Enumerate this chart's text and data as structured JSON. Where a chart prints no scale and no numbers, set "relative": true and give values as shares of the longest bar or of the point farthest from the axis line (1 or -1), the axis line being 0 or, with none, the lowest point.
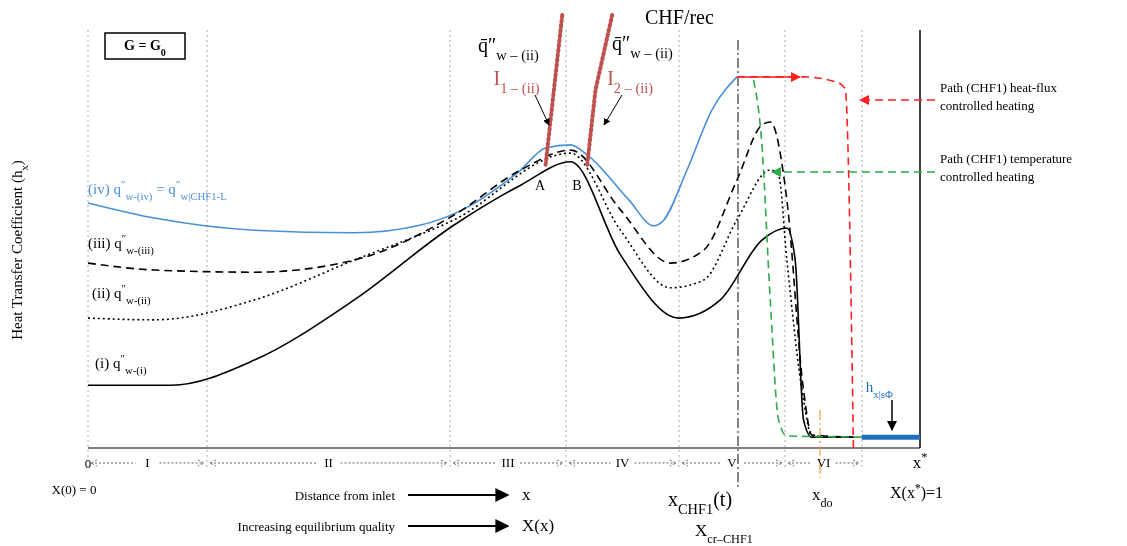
{
  "chart_data": {
    "type": "line",
    "relative": true,
    "ylabel": "Heat Transfer Coefficient (h$_{x}$)",
    "categories": [
      "0",
      null,
      null,
      null,
      null,
      null,
      null,
      null,
      null,
      null,
      null,
      null,
      null,
      null,
      null,
      null,
      null,
      null,
      null,
      null,
      null,
      null,
      null,
      null,
      null,
      null,
      null,
      null,
      null,
      null,
      null,
      null,
      null,
      null,
      null,
      null,
      null,
      null,
      null,
      null,
      null,
      null,
      null,
      null,
      null,
      null,
      null,
      null,
      null,
      null,
      null,
      null,
      null,
      null,
      null,
      null,
      null,
      null,
      null,
      null,
      null,
      null,
      null,
      null,
      null,
      null,
      null,
      null,
      null,
      null,
      null,
      null,
      null,
      null,
      null,
      null,
      null,
      null,
      null,
      null,
      null,
      null,
      null,
      null,
      null,
      null,
      null,
      null,
      null,
      null,
      null,
      null,
      null,
      null,
      null,
      null,
      null,
      null,
      null,
      null,
      "x$^{*}$"
    ],
    "series": [
      {
        "name": "(iv) q$^{″}$$_{w-(iv)}$ = q$^{″}$$_{w|CHF1-L}$",
        "color": "#4a90d9",
        "line_style": "solid",
        "values": [
          0.566,
          null,
          null,
          null,
          null,
          null,
          null,
          null,
          0.531,
          null,
          null,
          null,
          null,
          null,
          null,
          null,
          null,
          null,
          null,
          null,
          0.503,
          null,
          null,
          null,
          null,
          null,
          null,
          null,
          null,
          null,
          null,
          null,
          0.497,
          null,
          null,
          null,
          null,
          null,
          null,
          null,
          0.515,
          null,
          null,
          null,
          null,
          0.55,
          null,
          null,
          null,
          null,
          null,
          null,
          0.642,
          null,
          null,
          0.693,
          null,
          null,
          0.7,
          null,
          0.677,
          null,
          null,
          null,
          null,
          0.573,
          null,
          null,
          0.513,
          0.522,
          null,
          null,
          0.642,
          null,
          null,
          0.781,
          null,
          null,
          0.857,
          null,
          null,
          null,
          null,
          null,
          null,
          null,
          null,
          null,
          null,
          null,
          null,
          null,
          null,
          null,
          null,
          null,
          null,
          null,
          null,
          null,
          null
        ]
      },
      {
        "name": "(iii) q$^{″}$$_{w-(iii)}$",
        "color": "#000000",
        "line_style": "dashed",
        "values": [
          0.427,
          null,
          null,
          null,
          null,
          null,
          null,
          null,
          0.411,
          null,
          null,
          null,
          null,
          null,
          null,
          null,
          null,
          null,
          null,
          null,
          0.406,
          null,
          null,
          null,
          null,
          null,
          null,
          null,
          null,
          null,
          null,
          null,
          0.434,
          null,
          null,
          null,
          null,
          null,
          null,
          null,
          null,
          null,
          null,
          null,
          0.538,
          null,
          null,
          null,
          null,
          null,
          null,
          null,
          0.642,
          null,
          null,
          null,
          null,
          null,
          0.688,
          null,
          null,
          null,
          null,
          null,
          0.55,
          null,
          null,
          null,
          null,
          null,
          0.427,
          null,
          null,
          null,
          0.457,
          null,
          null,
          null,
          0.619,
          null,
          null,
          0.746,
          0.753,
          null,
          0.573,
          null,
          0.134,
          0.03,
          null,
          null,
          null,
          null,
          0.025,
          null,
          null,
          null,
          null,
          null,
          null,
          null,
          null
        ]
      },
      {
        "name": "(ii) q$^{″}$$_{w-(ii)}$",
        "color": "#000000",
        "line_style": "dotted",
        "values": [
          0.3,
          null,
          null,
          null,
          null,
          null,
          null,
          null,
          0.296,
          null,
          null,
          null,
          null,
          null,
          null,
          null,
          null,
          null,
          null,
          null,
          0.342,
          null,
          null,
          null,
          null,
          null,
          null,
          null,
          null,
          null,
          null,
          null,
          0.434,
          null,
          null,
          null,
          null,
          null,
          null,
          null,
          null,
          null,
          null,
          null,
          0.527,
          null,
          null,
          null,
          null,
          null,
          null,
          null,
          null,
          null,
          null,
          null,
          null,
          null,
          0.681,
          null,
          null,
          null,
          null,
          null,
          0.503,
          null,
          null,
          null,
          null,
          null,
          0.37,
          null,
          null,
          null,
          0.388,
          null,
          null,
          null,
          0.527,
          null,
          null,
          null,
          0.642,
          0.63,
          0.434,
          null,
          0.111,
          0.028,
          null,
          null,
          null,
          null,
          0.025,
          null,
          null,
          null,
          null,
          null,
          null,
          null,
          null
        ]
      },
      {
        "name": "(i)  q$^{″}$$_{w-(i)}$",
        "color": "#000000",
        "line_style": "solid",
        "values": [
          0.145,
          null,
          null,
          null,
          null,
          null,
          null,
          null,
          null,
          null,
          0.145,
          null,
          null,
          null,
          null,
          null,
          null,
          null,
          null,
          null,
          0.203,
          null,
          null,
          null,
          null,
          null,
          null,
          null,
          null,
          null,
          null,
          null,
          0.342,
          null,
          null,
          null,
          null,
          null,
          null,
          null,
          null,
          null,
          null,
          null,
          0.515,
          null,
          null,
          null,
          null,
          null,
          null,
          null,
          0.607,
          null,
          null,
          null,
          null,
          null,
          0.661,
          null,
          null,
          null,
          null,
          null,
          0.446,
          null,
          null,
          null,
          null,
          null,
          null,
          0.3,
          null,
          null,
          null,
          null,
          0.342,
          null,
          null,
          null,
          null,
          0.48,
          null,
          null,
          0.508,
          0.434,
          0.065,
          0.025,
          null,
          null,
          null,
          null,
          0.025,
          null,
          null,
          null,
          null,
          null,
          null,
          null,
          null
        ]
      },
      {
        "color": "#2eaa4a",
        "line_style": "dashed",
        "values": [
          null,
          null,
          null,
          null,
          null,
          null,
          null,
          null,
          null,
          null,
          null,
          null,
          null,
          null,
          null,
          null,
          null,
          null,
          null,
          null,
          null,
          null,
          null,
          null,
          null,
          null,
          null,
          null,
          null,
          null,
          null,
          null,
          null,
          null,
          null,
          null,
          null,
          null,
          null,
          null,
          null,
          null,
          null,
          null,
          null,
          null,
          null,
          null,
          null,
          null,
          null,
          null,
          null,
          null,
          null,
          null,
          null,
          null,
          null,
          null,
          null,
          null,
          null,
          null,
          null,
          null,
          null,
          null,
          null,
          null,
          null,
          null,
          null,
          null,
          null,
          null,
          null,
          null,
          null,
          null,
          0.85,
          0.7,
          0.342,
          0.065,
          0.028,
          null,
          null,
          null,
          null,
          null,
          null,
          null,
          null,
          0.025,
          null,
          null,
          null,
          null,
          null,
          null,
          null
        ]
      },
      {
        "color": "#ff2020",
        "line_style": "dashed",
        "values": [
          null,
          null,
          null,
          null,
          null,
          null,
          null,
          null,
          null,
          null,
          null,
          null,
          null,
          null,
          null,
          null,
          null,
          null,
          null,
          null,
          null,
          null,
          null,
          null,
          null,
          null,
          null,
          null,
          null,
          null,
          null,
          null,
          null,
          null,
          null,
          null,
          null,
          null,
          null,
          null,
          null,
          null,
          null,
          null,
          null,
          null,
          null,
          null,
          null,
          null,
          null,
          null,
          null,
          null,
          null,
          null,
          null,
          null,
          null,
          null,
          null,
          null,
          null,
          null,
          null,
          null,
          null,
          null,
          null,
          null,
          null,
          null,
          null,
          null,
          null,
          null,
          null,
          null,
          0.857,
          null,
          null,
          null,
          null,
          null,
          null,
          null,
          0.857,
          null,
          null,
          null,
          0.845,
          0.83,
          0,
          null,
          null,
          null,
          null,
          null,
          null,
          null,
          null
        ]
      },
      {
        "name": "I$_{1 – (ii)}$",
        "color": "#c0504d",
        "line_style": "dotted",
        "values": [
          null,
          null,
          null,
          null,
          null,
          null,
          null,
          null,
          null,
          null,
          null,
          null,
          null,
          null,
          null,
          null,
          null,
          null,
          null,
          null,
          null,
          null,
          null,
          null,
          null,
          null,
          null,
          null,
          null,
          null,
          null,
          null,
          null,
          null,
          null,
          null,
          null,
          null,
          null,
          null,
          null,
          null,
          null,
          null,
          null,
          null,
          null,
          null,
          null,
          null,
          null,
          null,
          null,
          null,
          null,
          0.654,
          0.827,
          1,
          null,
          null,
          null,
          null,
          null,
          null,
          null,
          null,
          null,
          null,
          null,
          null,
          null,
          null,
          null,
          null,
          null,
          null,
          null,
          null,
          null,
          null,
          null,
          null,
          null,
          null,
          null,
          null,
          null,
          null,
          null,
          null,
          null,
          null,
          null,
          null,
          null,
          null,
          null,
          null,
          null,
          null,
          null
        ]
      },
      {
        "name": "I$_{2 – (ii)}$",
        "color": "#c0504d",
        "line_style": "dotted",
        "values": [
          null,
          null,
          null,
          null,
          null,
          null,
          null,
          null,
          null,
          null,
          null,
          null,
          null,
          null,
          null,
          null,
          null,
          null,
          null,
          null,
          null,
          null,
          null,
          null,
          null,
          null,
          null,
          null,
          null,
          null,
          null,
          null,
          null,
          null,
          null,
          null,
          null,
          null,
          null,
          null,
          null,
          null,
          null,
          null,
          null,
          null,
          null,
          null,
          null,
          null,
          null,
          null,
          null,
          null,
          null,
          null,
          null,
          null,
          null,
          null,
          0.654,
          0.827,
          null,
          1,
          null,
          null,
          null,
          null,
          null,
          null,
          null,
          null,
          null,
          null,
          null,
          null,
          null,
          null,
          null,
          null,
          null,
          null,
          null,
          null,
          null,
          null,
          null,
          null,
          null,
          null,
          null,
          null,
          null,
          null,
          null,
          null,
          null,
          null,
          null,
          null,
          null
        ]
      },
      {
        "name": "h$_{x|sΦ}$",
        "color": "#1f6fc0",
        "line_style": "solid",
        "values": [
          null,
          null,
          null,
          null,
          null,
          null,
          null,
          null,
          null,
          null,
          null,
          null,
          null,
          null,
          null,
          null,
          null,
          null,
          null,
          null,
          null,
          null,
          null,
          null,
          null,
          null,
          null,
          null,
          null,
          null,
          null,
          null,
          null,
          null,
          null,
          null,
          null,
          null,
          null,
          null,
          null,
          null,
          null,
          null,
          null,
          null,
          null,
          null,
          null,
          null,
          null,
          null,
          null,
          null,
          null,
          null,
          null,
          null,
          null,
          null,
          null,
          null,
          null,
          null,
          null,
          null,
          null,
          null,
          null,
          null,
          null,
          null,
          null,
          null,
          null,
          null,
          null,
          null,
          null,
          null,
          null,
          null,
          null,
          null,
          null,
          null,
          null,
          null,
          null,
          null,
          null,
          null,
          null,
          0.025,
          null,
          null,
          null,
          null,
          null,
          null,
          0.025
        ]
      }
    ],
    "annotations": [
      "A",
      "B",
      "CHF/rec",
      "q̄″$_{w – (ii)}$",
      "q̄″$_{w – (ii)}$",
      "G = G$_{0}$",
      "Path (CHF1) heat-flux controlled heating",
      "Path (CHF1) temperature controlled heating",
      "X(0) = 0",
      "Distance from inlet",
      "x",
      "Increasing equilibrium quality",
      "X(x)",
      "X$_{cr–CHF1}$",
      "X(x$^{*}$)=1",
      "I",
      "II",
      "III",
      "IV",
      "V",
      "VI",
      "x$_{CHF1}$(t)",
      "x$_{do}$"
    ]
  }
}
